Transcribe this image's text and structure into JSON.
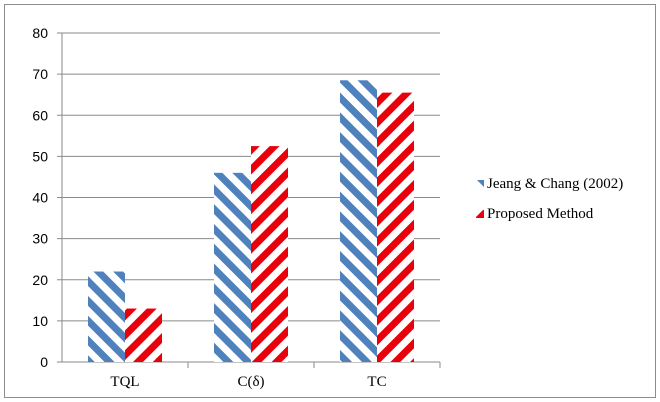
{
  "chart_data": {
    "type": "bar",
    "categories": [
      "TQL",
      "C(δ)",
      "TC"
    ],
    "series": [
      {
        "name": "Jeang & Chang (2002)",
        "values": [
          22,
          46,
          68.5
        ],
        "color": "#4f81bd",
        "pattern": "diagonal-hatch"
      },
      {
        "name": "Proposed Method",
        "values": [
          13,
          52.5,
          65.5
        ],
        "color": "#e8000b",
        "pattern": "diagonal-hatch"
      }
    ],
    "ylim": [
      0,
      80
    ],
    "yticks": [
      0,
      10,
      20,
      30,
      40,
      50,
      60,
      70,
      80
    ],
    "grid": true,
    "legend": "right"
  }
}
